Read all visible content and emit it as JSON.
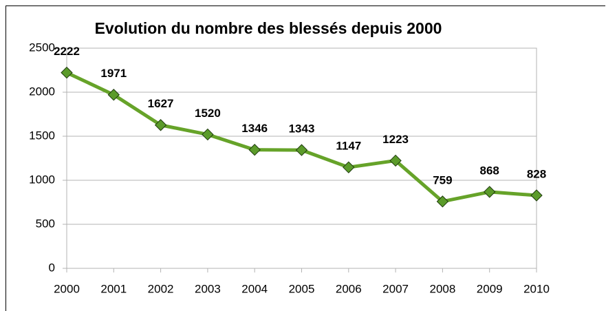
{
  "chart_data": {
    "type": "line",
    "title": "Evolution du nombre des blessés depuis 2000",
    "categories": [
      "2000",
      "2001",
      "2002",
      "2003",
      "2004",
      "2005",
      "2006",
      "2007",
      "2008",
      "2009",
      "2010"
    ],
    "series": [
      {
        "name": "Blessés",
        "color": "#66a329",
        "marker_color": "#5b9b2a",
        "values": [
          2222,
          1971,
          1627,
          1520,
          1346,
          1343,
          1147,
          1223,
          759,
          868,
          828
        ]
      }
    ],
    "ylim": [
      0,
      2500
    ],
    "yticks": [
      0,
      500,
      1000,
      1500,
      2000,
      2500
    ],
    "grid": true
  }
}
